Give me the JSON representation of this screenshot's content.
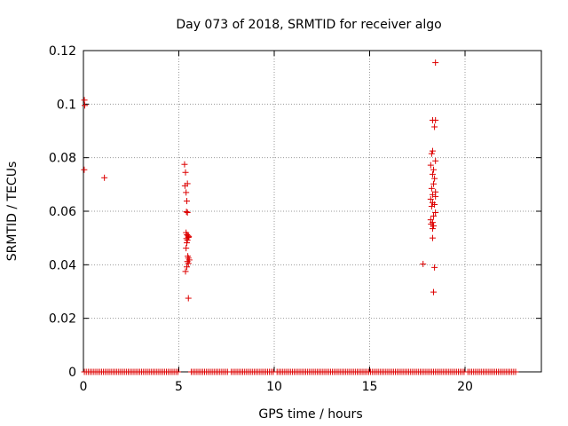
{
  "chart_data": {
    "type": "scatter",
    "title": "Day 073 of 2018, SRMTID for receiver algo",
    "xlabel": "GPS time / hours",
    "ylabel": "SRMTID / TECUs",
    "xlim": [
      0,
      24
    ],
    "ylim": [
      0,
      0.12
    ],
    "xticks": [
      0,
      5,
      10,
      15,
      20
    ],
    "yticks": [
      0,
      0.02,
      0.04,
      0.06,
      0.08,
      0.1,
      0.12
    ],
    "xtick_labels": [
      "0",
      "5",
      "10",
      "15",
      "20"
    ],
    "ytick_labels": [
      "0",
      "0.02",
      "0.04",
      "0.06",
      "0.08",
      "0.1",
      "0.12"
    ],
    "grid": true,
    "marker": "+",
    "color": "#dd0000",
    "baseline": {
      "y": 0,
      "x_start": 0.05,
      "x_end": 22.7,
      "step": 0.1,
      "gaps": [
        [
          4.95,
          5.55
        ],
        [
          7.55,
          7.7
        ],
        [
          9.95,
          10.05
        ],
        [
          20.05,
          20.15
        ]
      ]
    },
    "points": [
      [
        0.05,
        0.1015
      ],
      [
        0.07,
        0.0995
      ],
      [
        0.04,
        0.0755
      ],
      [
        1.1,
        0.0725
      ],
      [
        5.3,
        0.0775
      ],
      [
        5.35,
        0.0745
      ],
      [
        5.45,
        0.0703
      ],
      [
        5.32,
        0.0695
      ],
      [
        5.38,
        0.067
      ],
      [
        5.42,
        0.0638
      ],
      [
        5.4,
        0.0598
      ],
      [
        5.45,
        0.0595
      ],
      [
        5.38,
        0.052
      ],
      [
        5.43,
        0.0512
      ],
      [
        5.48,
        0.0508
      ],
      [
        5.5,
        0.0502
      ],
      [
        5.4,
        0.0498
      ],
      [
        5.45,
        0.0492
      ],
      [
        5.52,
        0.0505
      ],
      [
        5.42,
        0.0482
      ],
      [
        5.38,
        0.0462
      ],
      [
        5.47,
        0.0432
      ],
      [
        5.5,
        0.0425
      ],
      [
        5.55,
        0.0418
      ],
      [
        5.45,
        0.0412
      ],
      [
        5.5,
        0.0405
      ],
      [
        5.42,
        0.0392
      ],
      [
        5.35,
        0.0375
      ],
      [
        5.5,
        0.0275
      ],
      [
        18.45,
        0.1155
      ],
      [
        18.3,
        0.094
      ],
      [
        18.45,
        0.094
      ],
      [
        18.4,
        0.0915
      ],
      [
        18.3,
        0.0825
      ],
      [
        18.25,
        0.0815
      ],
      [
        18.45,
        0.0788
      ],
      [
        18.2,
        0.0772
      ],
      [
        18.35,
        0.0755
      ],
      [
        18.3,
        0.0738
      ],
      [
        18.4,
        0.0722
      ],
      [
        18.35,
        0.0702
      ],
      [
        18.25,
        0.0685
      ],
      [
        18.45,
        0.0672
      ],
      [
        18.3,
        0.0662
      ],
      [
        18.45,
        0.0655
      ],
      [
        18.2,
        0.0645
      ],
      [
        18.3,
        0.0632
      ],
      [
        18.4,
        0.0625
      ],
      [
        18.25,
        0.0618
      ],
      [
        18.45,
        0.0595
      ],
      [
        18.35,
        0.0582
      ],
      [
        18.2,
        0.0568
      ],
      [
        18.3,
        0.0558
      ],
      [
        18.22,
        0.0552
      ],
      [
        18.35,
        0.0545
      ],
      [
        18.3,
        0.0535
      ],
      [
        18.3,
        0.05
      ],
      [
        17.8,
        0.0403
      ],
      [
        18.4,
        0.039
      ],
      [
        18.35,
        0.0298
      ]
    ]
  }
}
